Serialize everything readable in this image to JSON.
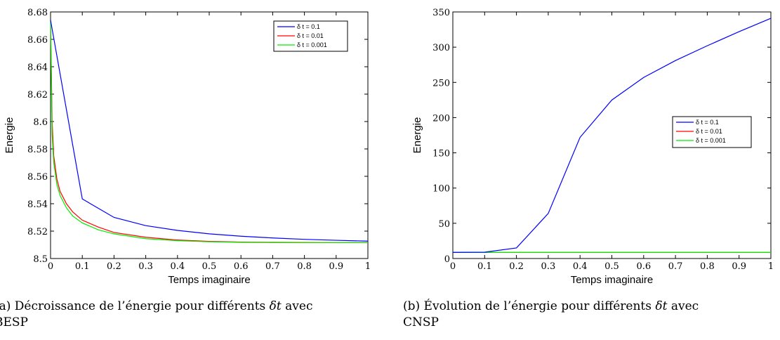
{
  "chart_data": [
    {
      "type": "line",
      "xlabel": "Temps imaginaire",
      "ylabel": "Energie",
      "xlim": [
        0,
        1
      ],
      "ylim": [
        8.5,
        8.68
      ],
      "xticks": [
        "0",
        "0.1",
        "0.2",
        "0.3",
        "0.4",
        "0.5",
        "0.6",
        "0.7",
        "0.8",
        "0.9",
        "1"
      ],
      "yticks": [
        "8.5",
        "8.52",
        "8.54",
        "8.56",
        "8.58",
        "8.6",
        "8.62",
        "8.64",
        "8.66",
        "8.68"
      ],
      "legend_position": "top-right",
      "series": [
        {
          "name": "δ t = 0.1",
          "color": "#0000ff",
          "x": [
            0,
            0.1,
            0.2,
            0.3,
            0.4,
            0.5,
            0.6,
            0.7,
            0.8,
            0.9,
            1.0
          ],
          "y": [
            8.674,
            8.5435,
            8.53,
            8.524,
            8.5205,
            8.518,
            8.5163,
            8.515,
            8.514,
            8.5133,
            8.5127
          ]
        },
        {
          "name": "δ t = 0.01",
          "color": "#ff0000",
          "x": [
            0,
            0.005,
            0.01,
            0.02,
            0.03,
            0.05,
            0.07,
            0.1,
            0.15,
            0.2,
            0.3,
            0.4,
            0.5,
            0.6,
            0.7,
            0.8,
            0.9,
            1.0
          ],
          "y": [
            8.674,
            8.6,
            8.575,
            8.558,
            8.549,
            8.54,
            8.534,
            8.528,
            8.523,
            8.519,
            8.5155,
            8.5135,
            8.5125,
            8.512,
            8.5118,
            8.5117,
            8.5116,
            8.5116
          ]
        },
        {
          "name": "δ t = 0.001",
          "color": "#00ee00",
          "x": [
            0,
            0.005,
            0.01,
            0.02,
            0.03,
            0.05,
            0.07,
            0.1,
            0.15,
            0.2,
            0.3,
            0.4,
            0.5,
            0.6,
            0.7,
            0.8,
            0.9,
            1.0
          ],
          "y": [
            8.674,
            8.59,
            8.57,
            8.554,
            8.546,
            8.537,
            8.531,
            8.526,
            8.521,
            8.518,
            8.5145,
            8.513,
            8.5122,
            8.5118,
            8.5116,
            8.5115,
            8.5115,
            8.5115
          ]
        }
      ]
    },
    {
      "type": "line",
      "xlabel": "Temps imaginaire",
      "ylabel": "Energie",
      "xlim": [
        0,
        1
      ],
      "ylim": [
        0,
        350
      ],
      "xticks": [
        "0",
        "0.1",
        "0.2",
        "0.3",
        "0.4",
        "0.5",
        "0.6",
        "0.7",
        "0.8",
        "0.9",
        "1"
      ],
      "yticks": [
        "0",
        "50",
        "100",
        "150",
        "200",
        "250",
        "300",
        "350"
      ],
      "legend_position": "right",
      "series": [
        {
          "name": "δ t = 0.1",
          "color": "#0000ff",
          "x": [
            0,
            0.1,
            0.2,
            0.3,
            0.4,
            0.5,
            0.6,
            0.7,
            0.8,
            0.9,
            1.0
          ],
          "y": [
            8.7,
            9,
            15,
            64,
            172,
            225,
            257,
            281,
            302,
            322,
            341
          ]
        },
        {
          "name": "δ t = 0.01",
          "color": "#ff0000",
          "x": [
            0,
            1.0
          ],
          "y": [
            8.6,
            8.6
          ]
        },
        {
          "name": "δ t = 0.001",
          "color": "#00ee00",
          "x": [
            0,
            1.0
          ],
          "y": [
            8.6,
            8.6
          ]
        }
      ]
    }
  ],
  "captions": [
    {
      "prefix": "(a) Décroissance de l’énergie pour différents ",
      "symbol": "δt",
      "suffix": " avec",
      "line2": "BESP"
    },
    {
      "prefix": "(b) Évolution de l’énergie pour différents ",
      "symbol": "δt",
      "suffix": " avec",
      "line2": "CNSP"
    }
  ]
}
